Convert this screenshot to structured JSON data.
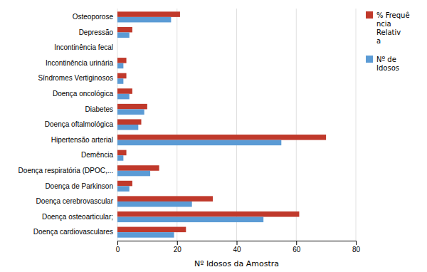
{
  "chart_data": {
    "type": "bar",
    "orientation": "horizontal",
    "categories": [
      "Doença cardiovasculares",
      "Doença osteoarticular;",
      "Doença cerebrovascular",
      "Doença de Parkinson",
      "Doença respiratória (DPOC,...",
      "Demência",
      "Hipertensão arterial",
      "Doença oftalmológica",
      "Diabetes",
      "Doença oncológica",
      "Síndromes Vertiginosos",
      "Incontinência urinária",
      "Incontinência fecal",
      "Depressão",
      "Osteoporose"
    ],
    "series": [
      {
        "name": "% Frequê\nncia\nRelativ\na",
        "color": "#c0392b",
        "values": [
          23,
          61,
          32,
          5,
          14,
          3,
          70,
          8,
          10,
          5,
          3,
          3,
          0,
          5,
          21
        ]
      },
      {
        "name": "Nº de\nIdosos",
        "color": "#5b9bd5",
        "values": [
          19,
          49,
          25,
          4,
          11,
          2,
          55,
          7,
          9,
          4,
          2,
          2,
          0,
          4,
          18
        ]
      }
    ],
    "xlabel": "Nº Idosos da Amostra",
    "xlim": [
      0,
      80
    ],
    "xticks": [
      0,
      20,
      40,
      60,
      80
    ],
    "grid": true,
    "legend": "right"
  }
}
